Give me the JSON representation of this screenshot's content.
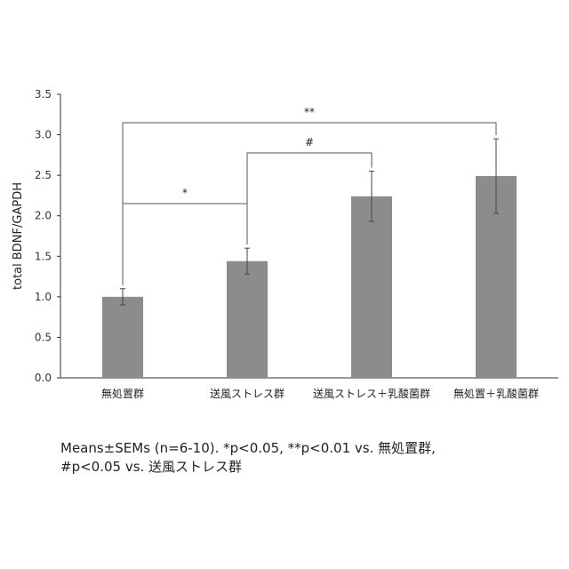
{
  "chart_data": {
    "type": "bar",
    "title": "",
    "xlabel": "",
    "ylabel": "total BDNF/GAPDH",
    "ylim": [
      0,
      3.5
    ],
    "yticks": [
      "0.0",
      "0.5",
      "1.0",
      "1.5",
      "2.0",
      "2.5",
      "3.0",
      "3.5"
    ],
    "categories": [
      "無処置群",
      "送風ストレス群",
      "送風ストレス＋乳酸菌群",
      "無処置＋乳酸菌群"
    ],
    "values": [
      1.0,
      1.44,
      2.24,
      2.49
    ],
    "errors": [
      0.1,
      0.16,
      0.31,
      0.46
    ],
    "bar_color": "#8c8c8c",
    "grid": false,
    "legend": "none",
    "significance": [
      {
        "from": 0,
        "to": 1,
        "label": "*"
      },
      {
        "from": 1,
        "to": 2,
        "label": "#"
      },
      {
        "from": 0,
        "to": 3,
        "label": "**"
      }
    ]
  },
  "caption": {
    "line1": "Means±SEMs (n=6-10). *p<0.05, **p<0.01 vs. 無処置群,",
    "line2": "#p<0.05 vs. 送風ストレス群"
  }
}
